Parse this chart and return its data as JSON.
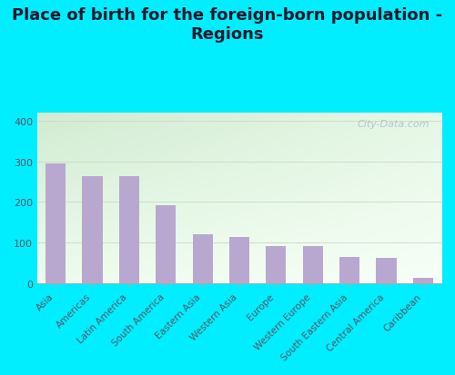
{
  "title": "Place of birth for the foreign-born population -\nRegions",
  "categories": [
    "Asia",
    "Americas",
    "Latin America",
    "South America",
    "Eastern Asia",
    "Western Asia",
    "Europe",
    "Western Europe",
    "South Eastern Asia",
    "Central America",
    "Caribbean"
  ],
  "values": [
    294,
    263,
    264,
    192,
    120,
    113,
    92,
    92,
    66,
    62,
    14
  ],
  "bar_color": "#b8a8d0",
  "outer_bg": "#00eeff",
  "plot_bg_topleft": "#d0ead0",
  "plot_bg_bottomright": "#f5fff5",
  "ylim": [
    0,
    420
  ],
  "yticks": [
    0,
    100,
    200,
    300,
    400
  ],
  "title_fontsize": 13,
  "tick_label_fontsize": 7.5,
  "ytick_fontsize": 8,
  "watermark": "City-Data.com"
}
